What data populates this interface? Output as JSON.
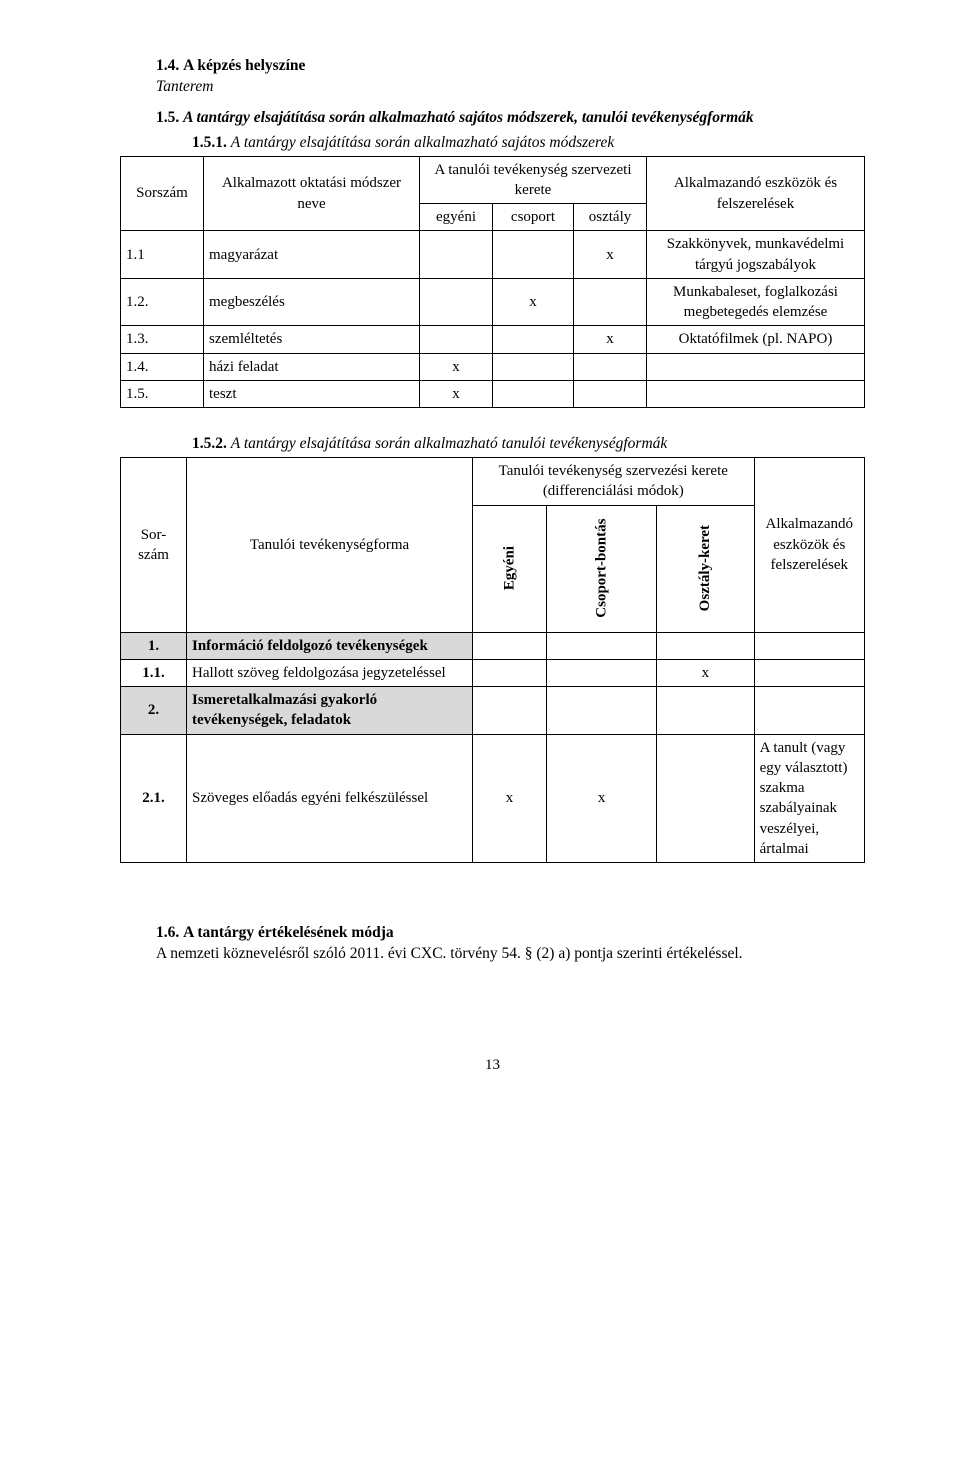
{
  "section14": {
    "num": "1.4.",
    "title": "A képzés helyszíne",
    "body": "Tanterem"
  },
  "section15": {
    "num": "1.5.",
    "title": "A tantárgy elsajátítása során alkalmazható sajátos módszerek, tanulói tevékenységformák"
  },
  "section151": {
    "num": "1.5.1.",
    "title": "A tantárgy elsajátítása során alkalmazható sajátos módszerek",
    "table": {
      "headers": {
        "sor": "Sorszám",
        "name": "Alkalmazott oktatási módszer neve",
        "kerete": "A tanulói tevékenység szervezeti kerete",
        "eszk": "Alkalmazandó eszközök és felszerelések",
        "egyeni": "egyéni",
        "csoport": "csoport",
        "osztaly": "osztály"
      },
      "rows": [
        {
          "sor": "1.1",
          "name": "magyarázat",
          "e": "",
          "c": "",
          "o": "x",
          "eszk": "Szakkönyvek, munkavédelmi tárgyú jogszabályok"
        },
        {
          "sor": "1.2.",
          "name": "megbeszélés",
          "e": "",
          "c": "x",
          "o": "",
          "eszk": "Munkabaleset, foglalkozási megbetegedés elemzése"
        },
        {
          "sor": "1.3.",
          "name": "szemléltetés",
          "e": "",
          "c": "",
          "o": "x",
          "eszk": "Oktatófilmek (pl. NAPO)"
        },
        {
          "sor": "1.4.",
          "name": "házi feladat",
          "e": "x",
          "c": "",
          "o": "",
          "eszk": ""
        },
        {
          "sor": "1.5.",
          "name": "teszt",
          "e": "x",
          "c": "",
          "o": "",
          "eszk": ""
        }
      ]
    }
  },
  "section152": {
    "num": "1.5.2.",
    "title": "A tantárgy elsajátítása során alkalmazható tanulói tevékenységformák",
    "table": {
      "headers": {
        "sor": "Sor-szám",
        "act": "Tanulói tevékenységforma",
        "diff": "Tanulói tevékenység szervezési kerete (differenciálási módok)",
        "eszk": "Alkalmazandó eszközök és felszerelések",
        "egyeni": "Egyéni",
        "csoport": "Csoport-bontás",
        "osztaly": "Osztály-keret"
      },
      "rows": [
        {
          "sor": "1.",
          "act": "Információ feldolgozó tevékenységek",
          "e": "",
          "c": "",
          "o": "",
          "eszk": "",
          "shaded": true
        },
        {
          "sor": "1.1.",
          "act": "Hallott szöveg feldolgozása jegyzeteléssel",
          "e": "",
          "c": "",
          "o": "x",
          "eszk": "",
          "shaded": false
        },
        {
          "sor": "2.",
          "act": "Ismeretalkalmazási gyakorló tevékenységek, feladatok",
          "e": "",
          "c": "",
          "o": "",
          "eszk": "",
          "shaded": true
        },
        {
          "sor": "2.1.",
          "act": "Szöveges előadás egyéni felkészüléssel",
          "e": "x",
          "c": "x",
          "o": "",
          "eszk": "A tanult (vagy egy választott) szakma szabályainak veszélyei, ártalmai",
          "shaded": false
        }
      ]
    }
  },
  "section16": {
    "num": "1.6.",
    "title": "A tantárgy értékelésének módja",
    "body": "A nemzeti köznevelésről szóló 2011. évi CXC. törvény 54. § (2) a) pontja szerinti értékeléssel."
  },
  "pageNum": "13"
}
